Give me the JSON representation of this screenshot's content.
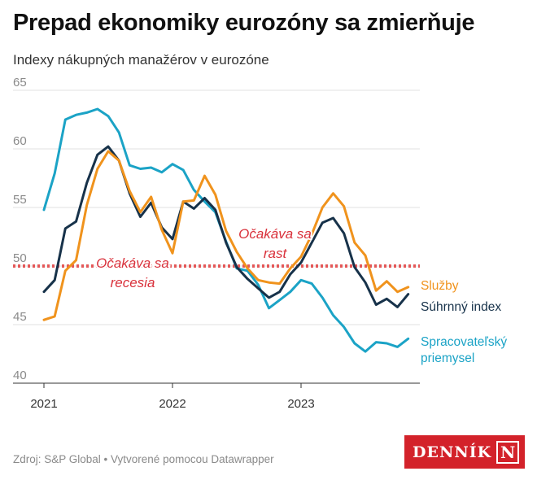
{
  "title": "Prepad ekonomiky eurozóny sa zmierňuje",
  "subtitle": "Indexy nákupných manažérov v eurozóne",
  "footer": "Zdroj: S&P Global • Vytvorené pomocou Datawrapper",
  "logo": {
    "text": "DENNÍK",
    "mark": "N",
    "color": "#d3222a"
  },
  "chart_data": {
    "type": "line",
    "x": [
      "2021-01",
      "2021-02",
      "2021-03",
      "2021-04",
      "2021-05",
      "2021-06",
      "2021-07",
      "2021-08",
      "2021-09",
      "2021-10",
      "2021-11",
      "2021-12",
      "2022-01",
      "2022-02",
      "2022-03",
      "2022-04",
      "2022-05",
      "2022-06",
      "2022-07",
      "2022-08",
      "2022-09",
      "2022-10",
      "2022-11",
      "2022-12",
      "2023-01",
      "2023-02",
      "2023-03",
      "2023-04",
      "2023-05",
      "2023-06",
      "2023-07",
      "2023-08",
      "2023-09",
      "2023-10",
      "2023-11"
    ],
    "xticks": [
      "2021",
      "2022",
      "2023"
    ],
    "yticks": [
      40,
      45,
      50,
      55,
      60,
      65
    ],
    "ylim": [
      40,
      65
    ],
    "grid": true,
    "series": [
      {
        "name": "Spracovateľský priemysel",
        "color": "#1ba3c6",
        "values": [
          54.8,
          57.9,
          62.5,
          62.9,
          63.1,
          63.4,
          62.8,
          61.4,
          58.6,
          58.3,
          58.4,
          58.0,
          58.7,
          58.2,
          56.5,
          55.5,
          54.6,
          52.1,
          49.8,
          49.6,
          48.4,
          46.4,
          47.1,
          47.8,
          48.8,
          48.5,
          47.3,
          45.8,
          44.8,
          43.4,
          42.7,
          43.5,
          43.4,
          43.1,
          43.8
        ]
      },
      {
        "name": "Súhrnný index",
        "color": "#17324a",
        "values": [
          47.8,
          48.8,
          53.2,
          53.8,
          57.1,
          59.5,
          60.2,
          59.0,
          56.2,
          54.2,
          55.4,
          53.3,
          52.3,
          55.5,
          54.9,
          55.8,
          54.8,
          52.0,
          49.9,
          48.9,
          48.1,
          47.3,
          47.8,
          49.3,
          50.3,
          52.0,
          53.7,
          54.1,
          52.8,
          49.9,
          48.6,
          46.7,
          47.2,
          46.5,
          47.6
        ]
      },
      {
        "name": "Služby",
        "color": "#f0931d",
        "values": [
          45.4,
          45.7,
          49.6,
          50.5,
          55.2,
          58.3,
          59.8,
          59.0,
          56.4,
          54.6,
          55.9,
          53.1,
          51.1,
          55.5,
          55.6,
          57.7,
          56.1,
          53.0,
          51.2,
          49.8,
          48.8,
          48.6,
          48.5,
          49.8,
          50.8,
          52.7,
          55.0,
          56.2,
          55.1,
          52.0,
          50.9,
          47.9,
          48.7,
          47.8,
          48.2
        ]
      }
    ],
    "reference_line": {
      "y": 50,
      "color": "#e45858"
    },
    "annotations": [
      {
        "lines": [
          "Očakáva sa",
          "recesia"
        ],
        "color": "#d9313b"
      },
      {
        "lines": [
          "Očakáva sa",
          "rast"
        ],
        "color": "#d9313b"
      }
    ],
    "series_labels": [
      {
        "series": 2,
        "lines": [
          "Služby"
        ]
      },
      {
        "series": 1,
        "lines": [
          "Súhrnný index"
        ]
      },
      {
        "series": 0,
        "lines": [
          "Spracovateľský",
          "priemysel"
        ]
      }
    ]
  }
}
